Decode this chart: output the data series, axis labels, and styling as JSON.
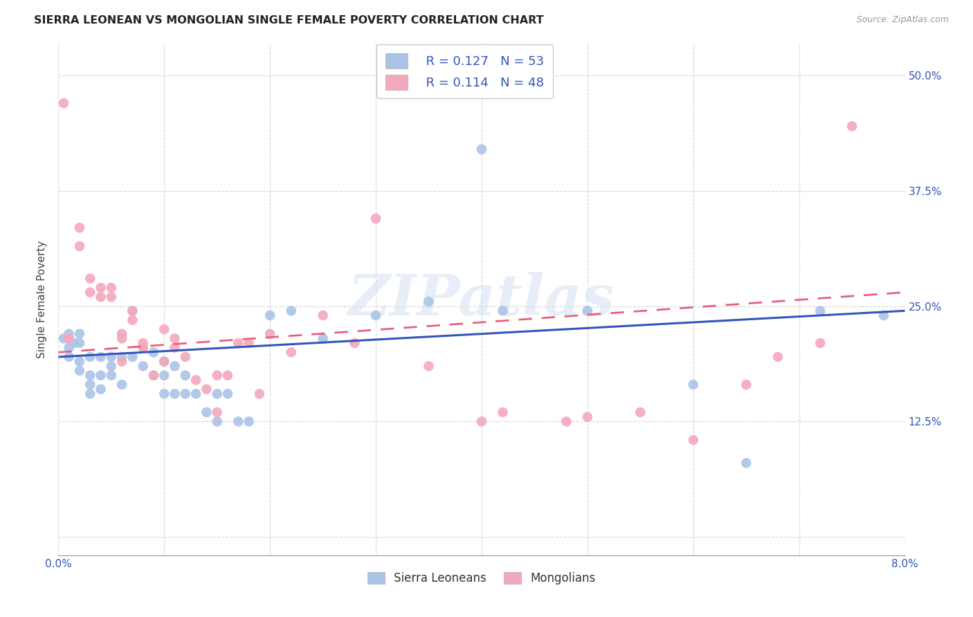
{
  "title": "SIERRA LEONEAN VS MONGOLIAN SINGLE FEMALE POVERTY CORRELATION CHART",
  "source": "Source: ZipAtlas.com",
  "ylabel": "Single Female Poverty",
  "ytick_labels": [
    "",
    "12.5%",
    "25.0%",
    "37.5%",
    "50.0%"
  ],
  "ytick_values": [
    0.0,
    0.125,
    0.25,
    0.375,
    0.5
  ],
  "xmin": 0.0,
  "xmax": 0.08,
  "ymin": -0.02,
  "ymax": 0.535,
  "legend_r_blue": "R = 0.127",
  "legend_n_blue": "N = 53",
  "legend_r_pink": "R = 0.114",
  "legend_n_pink": "N = 48",
  "blue_color": "#aac4e8",
  "pink_color": "#f4a8bc",
  "blue_line_color": "#3355bb",
  "pink_line_color": "#e8607a",
  "background_color": "#ffffff",
  "watermark": "ZIPatlas",
  "blue_trend_x": [
    0.0,
    0.08
  ],
  "blue_trend_y": [
    0.195,
    0.245
  ],
  "pink_trend_x": [
    0.0,
    0.08
  ],
  "pink_trend_y": [
    0.2,
    0.265
  ],
  "sierra_x": [
    0.0005,
    0.001,
    0.001,
    0.001,
    0.0015,
    0.002,
    0.002,
    0.002,
    0.002,
    0.003,
    0.003,
    0.003,
    0.003,
    0.004,
    0.004,
    0.004,
    0.005,
    0.005,
    0.005,
    0.006,
    0.006,
    0.007,
    0.007,
    0.008,
    0.008,
    0.009,
    0.009,
    0.01,
    0.01,
    0.01,
    0.011,
    0.011,
    0.012,
    0.012,
    0.013,
    0.014,
    0.015,
    0.015,
    0.016,
    0.017,
    0.018,
    0.02,
    0.022,
    0.025,
    0.03,
    0.035,
    0.04,
    0.042,
    0.05,
    0.06,
    0.065,
    0.072,
    0.078
  ],
  "sierra_y": [
    0.215,
    0.22,
    0.205,
    0.195,
    0.21,
    0.22,
    0.19,
    0.18,
    0.21,
    0.195,
    0.175,
    0.165,
    0.155,
    0.195,
    0.175,
    0.16,
    0.195,
    0.185,
    0.175,
    0.195,
    0.165,
    0.245,
    0.195,
    0.205,
    0.185,
    0.2,
    0.175,
    0.19,
    0.175,
    0.155,
    0.185,
    0.155,
    0.175,
    0.155,
    0.155,
    0.135,
    0.155,
    0.125,
    0.155,
    0.125,
    0.125,
    0.24,
    0.245,
    0.215,
    0.24,
    0.255,
    0.42,
    0.245,
    0.245,
    0.165,
    0.08,
    0.245,
    0.24
  ],
  "mongolia_x": [
    0.0005,
    0.001,
    0.001,
    0.002,
    0.002,
    0.003,
    0.003,
    0.004,
    0.004,
    0.005,
    0.005,
    0.006,
    0.006,
    0.006,
    0.007,
    0.007,
    0.008,
    0.008,
    0.009,
    0.01,
    0.01,
    0.011,
    0.011,
    0.012,
    0.013,
    0.014,
    0.015,
    0.015,
    0.016,
    0.017,
    0.018,
    0.019,
    0.02,
    0.022,
    0.025,
    0.028,
    0.03,
    0.035,
    0.04,
    0.042,
    0.048,
    0.05,
    0.055,
    0.06,
    0.065,
    0.068,
    0.072,
    0.075
  ],
  "mongolia_y": [
    0.47,
    0.215,
    0.215,
    0.335,
    0.315,
    0.28,
    0.265,
    0.27,
    0.26,
    0.27,
    0.26,
    0.22,
    0.215,
    0.19,
    0.245,
    0.235,
    0.21,
    0.205,
    0.175,
    0.225,
    0.19,
    0.215,
    0.205,
    0.195,
    0.17,
    0.16,
    0.175,
    0.135,
    0.175,
    0.21,
    0.21,
    0.155,
    0.22,
    0.2,
    0.24,
    0.21,
    0.345,
    0.185,
    0.125,
    0.135,
    0.125,
    0.13,
    0.135,
    0.105,
    0.165,
    0.195,
    0.21,
    0.445
  ]
}
